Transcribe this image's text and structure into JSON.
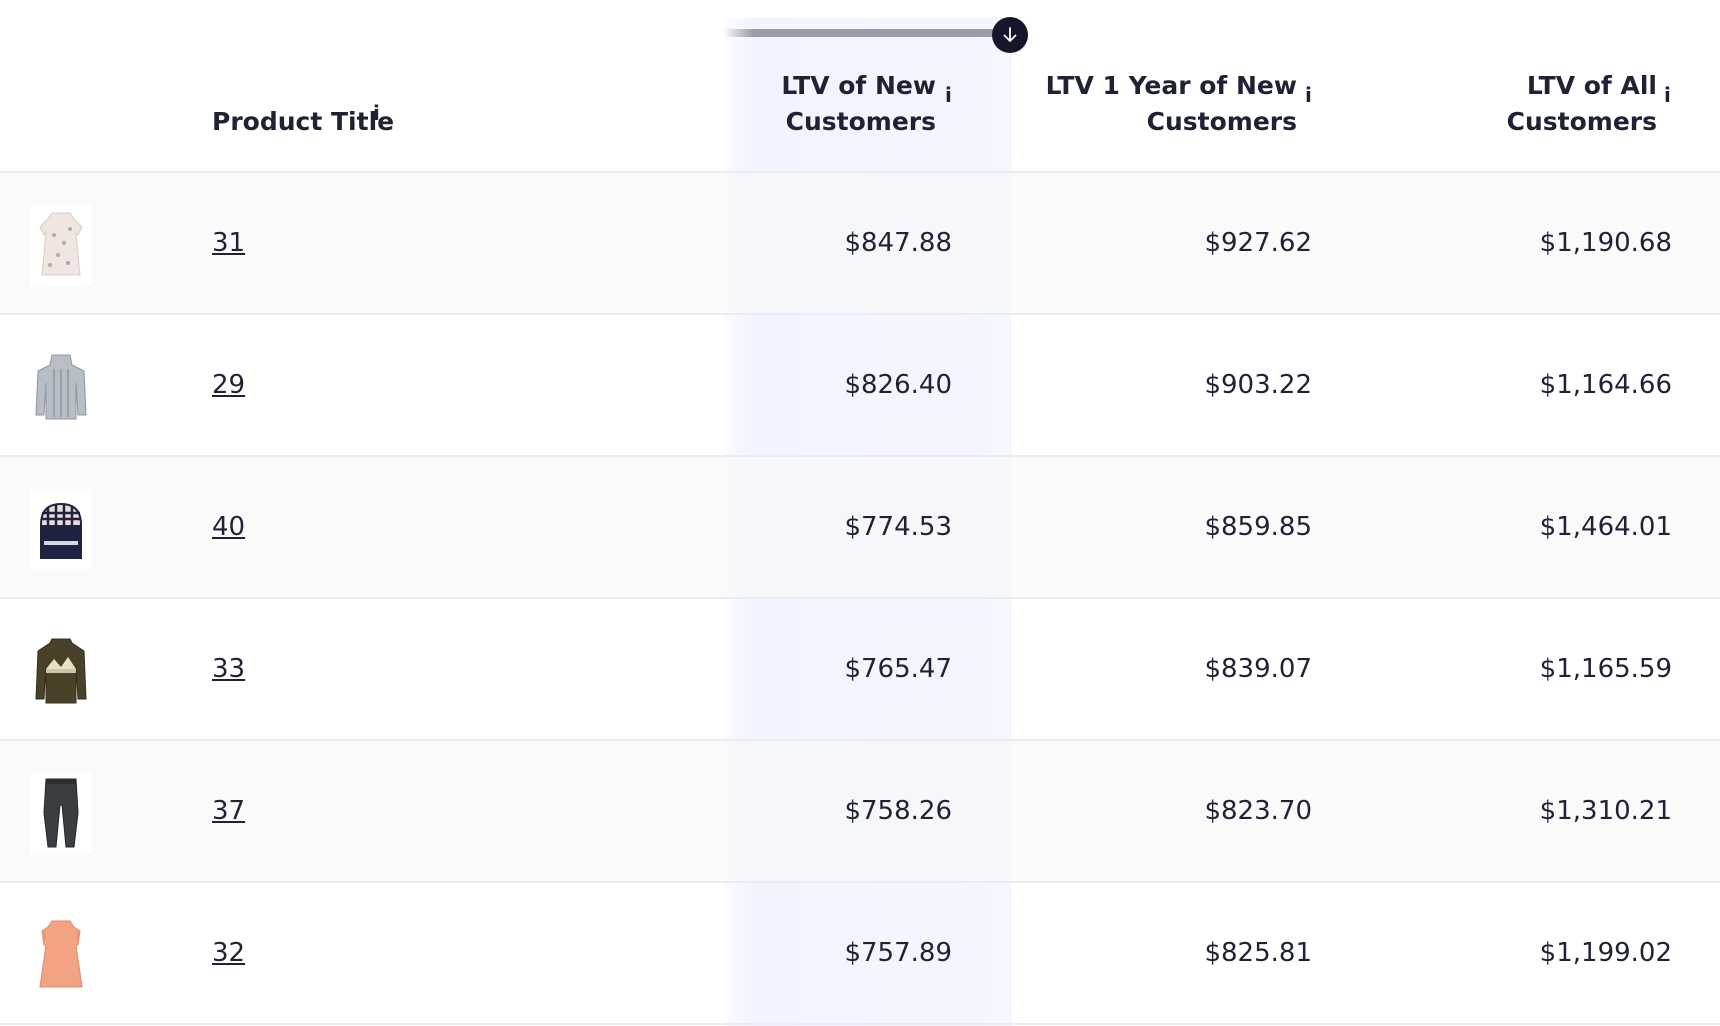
{
  "header": {
    "product_title": "Product Title",
    "info_glyph": "i",
    "columns": [
      {
        "line1": "LTV of New",
        "line2": "Customers"
      },
      {
        "line1": "LTV 1 Year of New",
        "line2": "Customers"
      },
      {
        "line1": "LTV of All",
        "line2": "Customers"
      }
    ],
    "sort_icon": "arrow-down-icon"
  },
  "rows": [
    {
      "title": "31",
      "thumb": "floral-dress-thumbnail",
      "ltv_new": "$847.88",
      "ltv_1y_new": "$927.62",
      "ltv_all": "$1,190.68"
    },
    {
      "title": "29",
      "thumb": "grey-knit-sweater-thumbnail",
      "ltv_new": "$826.40",
      "ltv_1y_new": "$903.22",
      "ltv_all": "$1,164.66"
    },
    {
      "title": "40",
      "thumb": "plaid-backpack-thumbnail",
      "ltv_new": "$774.53",
      "ltv_1y_new": "$859.85",
      "ltv_all": "$1,464.01"
    },
    {
      "title": "33",
      "thumb": "olive-sweater-thumbnail",
      "ltv_new": "$765.47",
      "ltv_1y_new": "$839.07",
      "ltv_all": "$1,165.59"
    },
    {
      "title": "37",
      "thumb": "dark-trousers-thumbnail",
      "ltv_new": "$758.26",
      "ltv_1y_new": "$823.70",
      "ltv_all": "$1,310.21"
    },
    {
      "title": "32",
      "thumb": "peach-dress-thumbnail",
      "ltv_new": "$757.89",
      "ltv_1y_new": "$825.81",
      "ltv_all": "$1,199.02"
    }
  ],
  "colors": {
    "text": "#1f2235",
    "sort_handle": "#14172b",
    "sorted_column_bg": "#f0f3ff",
    "row_divider": "#ececf0"
  }
}
